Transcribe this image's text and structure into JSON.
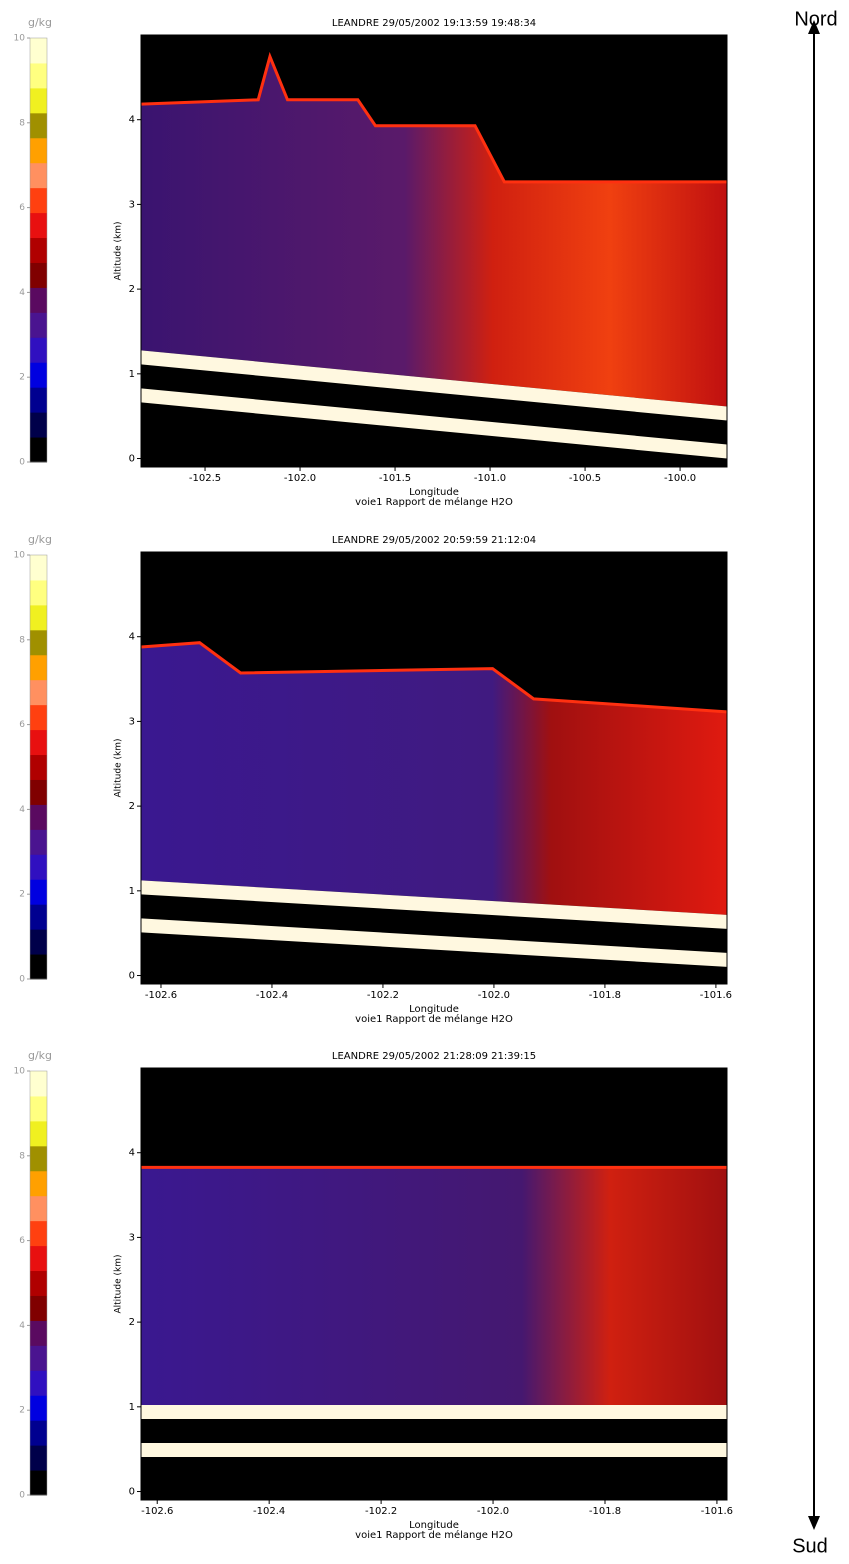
{
  "chart_data": [
    {
      "type": "heatmap",
      "title": "LEANDRE 29/05/2002 19:13:59 19:48:34",
      "xlabel": "Longitude",
      "ylabel": "Altitude (km)",
      "caption": "voie1 Rapport de mélange H2O",
      "xlim": [
        -102.837,
        -99.753
      ],
      "ylim": [
        -0.1,
        5.0
      ],
      "xticks": [
        -102.5,
        {
          "value": -102,
          "label": "-102.0"
        },
        -101.5,
        {
          "value": -101,
          "label": "-101.0"
        },
        -100.5,
        {
          "value": -100,
          "label": "-100.0"
        }
      ],
      "yticks": [
        0,
        1,
        2,
        3,
        4
      ],
      "colorbar": {
        "label": "g/kg",
        "lim": [
          0,
          10
        ],
        "ticks": [
          0,
          2,
          4,
          6,
          8,
          10
        ]
      }
    },
    {
      "type": "heatmap",
      "title": "LEANDRE 29/05/2002 20:59:59 21:12:04",
      "xlabel": "Longitude",
      "ylabel": "Altitude (km)",
      "caption": "voie1 Rapport de mélange H2O",
      "xlim": [
        -102.636,
        -101.58
      ],
      "ylim": [
        -0.1,
        5.0
      ],
      "xticks": [
        -102.6,
        -102.4,
        -102.2,
        {
          "value": -102,
          "label": "-102.0"
        },
        -101.8,
        -101.6
      ],
      "yticks": [
        0,
        1,
        2,
        3,
        4
      ],
      "colorbar": {
        "label": "g/kg",
        "lim": [
          0,
          10
        ],
        "ticks": [
          0,
          2,
          4,
          6,
          8,
          10
        ]
      }
    },
    {
      "type": "heatmap",
      "title": "LEANDRE 29/05/2002 21:28:09 21:39:15",
      "xlabel": "Longitude",
      "ylabel": "Altitude (km)",
      "caption": "voie1 Rapport de mélange H2O",
      "xlim": [
        -102.629,
        -101.582
      ],
      "ylim": [
        -0.1,
        5.0
      ],
      "xticks": [
        -102.6,
        -102.4,
        -102.2,
        {
          "value": -102,
          "label": "-102.0"
        },
        -101.8,
        -101.6
      ],
      "yticks": [
        0,
        1,
        2,
        3,
        4
      ],
      "colorbar": {
        "label": "g/kg",
        "lim": [
          0,
          10
        ],
        "ticks": [
          0,
          2,
          4,
          6,
          8,
          10
        ]
      }
    }
  ],
  "arrow": {
    "top": "Nord",
    "bottom": "Sud"
  }
}
